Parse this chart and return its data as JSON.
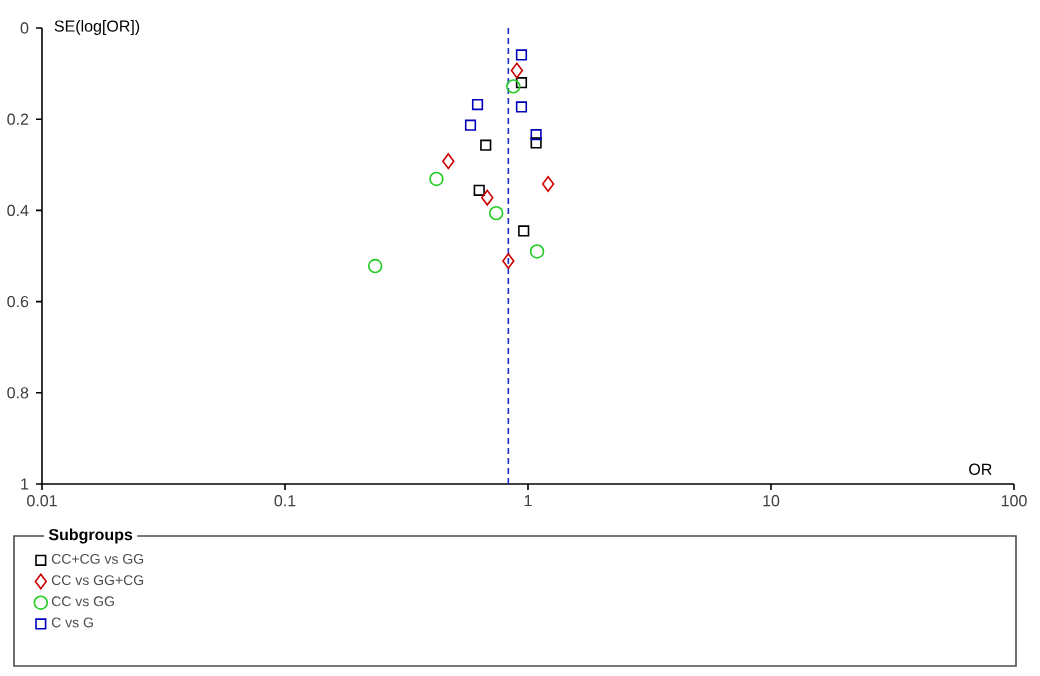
{
  "chart_data": {
    "type": "scatter",
    "xlabel": "OR",
    "ylabel": "SE(log[OR])",
    "legend_title": "Subgroups",
    "legend": "bottom",
    "log": "x",
    "xlim": [
      0.01,
      100
    ],
    "xticks": [
      0.01,
      0.1,
      1,
      10,
      100
    ],
    "ylim": [
      1,
      0
    ],
    "yticks": [
      0,
      0.2,
      0.4,
      0.6,
      0.8,
      1
    ],
    "ref_lines": [
      {
        "axis": "x",
        "value": 0.83,
        "color": "#1f2fd0",
        "line_style": "dashed"
      }
    ],
    "series": [
      {
        "name": "CC+CG vs GG",
        "color": "#000000",
        "marker": "square",
        "x": [
          0.94,
          0.67,
          1.08,
          0.63,
          0.96
        ],
        "values": [
          0.12,
          0.257,
          0.252,
          0.356,
          0.445
        ]
      },
      {
        "name": "CC vs GG+CG",
        "color": "#cc0000",
        "marker": "diamond",
        "x": [
          0.9,
          0.47,
          1.21,
          0.68,
          0.83
        ],
        "values": [
          0.093,
          0.292,
          0.342,
          0.372,
          0.511
        ]
      },
      {
        "name": "CC vs GG",
        "color": "#22cc22",
        "marker": "circle",
        "x": [
          0.87,
          0.42,
          0.74,
          1.09,
          0.235
        ],
        "values": [
          0.128,
          0.331,
          0.406,
          0.49,
          0.522
        ]
      },
      {
        "name": "C vs G",
        "color": "#0000bb",
        "marker": "square",
        "x": [
          0.94,
          0.62,
          0.94,
          0.58,
          1.08
        ],
        "values": [
          0.059,
          0.168,
          0.173,
          0.213,
          0.234
        ]
      }
    ]
  }
}
